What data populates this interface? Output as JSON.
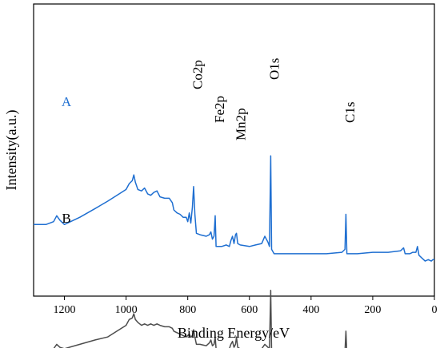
{
  "chart_data": {
    "type": "line",
    "xlabel": "Binding Energy/eV",
    "ylabel": "Intensity(a.u.)",
    "xlim": [
      1300,
      0
    ],
    "x_reversed": true,
    "xticks": [
      1200,
      1000,
      800,
      600,
      400,
      200,
      0
    ],
    "y_ticks_shown": false,
    "grid": false,
    "peak_labels": [
      {
        "text": "Co2p",
        "x": 780
      },
      {
        "text": "Fe2p",
        "x": 711
      },
      {
        "text": "Mn2p",
        "x": 642
      },
      {
        "text": "O1s",
        "x": 530
      },
      {
        "text": "C1s",
        "x": 285
      }
    ],
    "series": [
      {
        "name": "A",
        "color": "#1f6fd1",
        "points": [
          [
            1300,
            0.755
          ],
          [
            1260,
            0.755
          ],
          [
            1235,
            0.745
          ],
          [
            1225,
            0.725
          ],
          [
            1215,
            0.74
          ],
          [
            1200,
            0.755
          ],
          [
            1150,
            0.73
          ],
          [
            1100,
            0.7
          ],
          [
            1060,
            0.675
          ],
          [
            1030,
            0.655
          ],
          [
            1000,
            0.635
          ],
          [
            990,
            0.615
          ],
          [
            980,
            0.605
          ],
          [
            975,
            0.585
          ],
          [
            970,
            0.61
          ],
          [
            962,
            0.635
          ],
          [
            950,
            0.64
          ],
          [
            940,
            0.63
          ],
          [
            930,
            0.65
          ],
          [
            920,
            0.655
          ],
          [
            910,
            0.645
          ],
          [
            900,
            0.64
          ],
          [
            890,
            0.66
          ],
          [
            875,
            0.665
          ],
          [
            860,
            0.665
          ],
          [
            850,
            0.68
          ],
          [
            845,
            0.705
          ],
          [
            835,
            0.715
          ],
          [
            825,
            0.72
          ],
          [
            815,
            0.73
          ],
          [
            805,
            0.73
          ],
          [
            800,
            0.745
          ],
          [
            795,
            0.715
          ],
          [
            790,
            0.75
          ],
          [
            785,
            0.695
          ],
          [
            781,
            0.625
          ],
          [
            777,
            0.72
          ],
          [
            772,
            0.785
          ],
          [
            760,
            0.79
          ],
          [
            740,
            0.795
          ],
          [
            730,
            0.79
          ],
          [
            725,
            0.78
          ],
          [
            720,
            0.805
          ],
          [
            715,
            0.795
          ],
          [
            711,
            0.725
          ],
          [
            708,
            0.83
          ],
          [
            700,
            0.83
          ],
          [
            690,
            0.83
          ],
          [
            675,
            0.825
          ],
          [
            665,
            0.83
          ],
          [
            660,
            0.81
          ],
          [
            655,
            0.795
          ],
          [
            650,
            0.82
          ],
          [
            645,
            0.79
          ],
          [
            642,
            0.785
          ],
          [
            638,
            0.82
          ],
          [
            630,
            0.825
          ],
          [
            600,
            0.83
          ],
          [
            580,
            0.825
          ],
          [
            560,
            0.82
          ],
          [
            550,
            0.795
          ],
          [
            540,
            0.815
          ],
          [
            535,
            0.83
          ],
          [
            531,
            0.52
          ],
          [
            528,
            0.84
          ],
          [
            520,
            0.855
          ],
          [
            500,
            0.855
          ],
          [
            450,
            0.855
          ],
          [
            400,
            0.855
          ],
          [
            350,
            0.855
          ],
          [
            300,
            0.85
          ],
          [
            290,
            0.84
          ],
          [
            287,
            0.72
          ],
          [
            284,
            0.855
          ],
          [
            250,
            0.855
          ],
          [
            200,
            0.85
          ],
          [
            150,
            0.85
          ],
          [
            110,
            0.845
          ],
          [
            100,
            0.835
          ],
          [
            95,
            0.855
          ],
          [
            80,
            0.855
          ],
          [
            70,
            0.85
          ],
          [
            60,
            0.85
          ],
          [
            55,
            0.83
          ],
          [
            50,
            0.86
          ],
          [
            30,
            0.88
          ],
          [
            20,
            0.875
          ],
          [
            10,
            0.88
          ],
          [
            5,
            0.875
          ],
          [
            0,
            0.875
          ]
        ]
      },
      {
        "name": "B",
        "color": "#4d4d4d",
        "points": [
          [
            1300,
            1.18
          ],
          [
            1260,
            1.18
          ],
          [
            1235,
            1.18
          ],
          [
            1225,
            1.165
          ],
          [
            1215,
            1.175
          ],
          [
            1200,
            1.18
          ],
          [
            1150,
            1.165
          ],
          [
            1100,
            1.15
          ],
          [
            1060,
            1.14
          ],
          [
            1030,
            1.12
          ],
          [
            1000,
            1.1
          ],
          [
            990,
            1.08
          ],
          [
            980,
            1.075
          ],
          [
            975,
            1.06
          ],
          [
            970,
            1.08
          ],
          [
            962,
            1.09
          ],
          [
            950,
            1.1
          ],
          [
            940,
            1.095
          ],
          [
            930,
            1.1
          ],
          [
            920,
            1.095
          ],
          [
            910,
            1.1
          ],
          [
            900,
            1.095
          ],
          [
            890,
            1.1
          ],
          [
            875,
            1.105
          ],
          [
            860,
            1.105
          ],
          [
            850,
            1.11
          ],
          [
            845,
            1.12
          ],
          [
            835,
            1.125
          ],
          [
            825,
            1.13
          ],
          [
            815,
            1.135
          ],
          [
            805,
            1.14
          ],
          [
            795,
            1.13
          ],
          [
            790,
            1.14
          ],
          [
            785,
            1.135
          ],
          [
            781,
            1.115
          ],
          [
            777,
            1.14
          ],
          [
            772,
            1.165
          ],
          [
            760,
            1.165
          ],
          [
            740,
            1.17
          ],
          [
            730,
            1.16
          ],
          [
            725,
            1.15
          ],
          [
            720,
            1.17
          ],
          [
            715,
            1.165
          ],
          [
            711,
            1.14
          ],
          [
            708,
            1.18
          ],
          [
            700,
            1.18
          ],
          [
            690,
            1.18
          ],
          [
            675,
            1.18
          ],
          [
            665,
            1.18
          ],
          [
            660,
            1.165
          ],
          [
            655,
            1.155
          ],
          [
            650,
            1.175
          ],
          [
            645,
            1.165
          ],
          [
            642,
            1.14
          ],
          [
            638,
            1.175
          ],
          [
            630,
            1.18
          ],
          [
            600,
            1.18
          ],
          [
            580,
            1.18
          ],
          [
            560,
            1.18
          ],
          [
            550,
            1.165
          ],
          [
            540,
            1.175
          ],
          [
            535,
            1.18
          ],
          [
            531,
            0.98
          ],
          [
            528,
            1.19
          ],
          [
            520,
            1.2
          ],
          [
            500,
            1.2
          ],
          [
            450,
            1.2
          ],
          [
            400,
            1.2
          ],
          [
            350,
            1.2
          ],
          [
            300,
            1.195
          ],
          [
            290,
            1.19
          ],
          [
            287,
            1.12
          ],
          [
            284,
            1.2
          ],
          [
            250,
            1.2
          ],
          [
            200,
            1.2
          ],
          [
            150,
            1.2
          ],
          [
            110,
            1.195
          ],
          [
            100,
            1.19
          ],
          [
            95,
            1.2
          ],
          [
            80,
            1.2
          ],
          [
            70,
            1.2
          ],
          [
            60,
            1.2
          ],
          [
            55,
            1.185
          ],
          [
            50,
            1.2
          ],
          [
            30,
            1.215
          ],
          [
            20,
            1.21
          ],
          [
            10,
            1.215
          ],
          [
            5,
            1.21
          ],
          [
            0,
            1.21
          ]
        ]
      }
    ]
  }
}
